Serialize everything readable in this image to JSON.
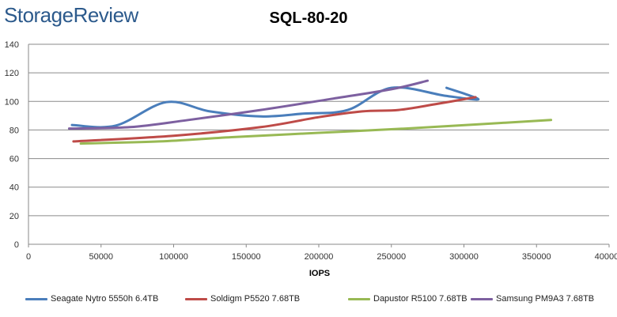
{
  "brand": {
    "logo_text": "StorageReview"
  },
  "chart_data": {
    "type": "line",
    "title": "SQL-80-20",
    "xlabel": "IOPS",
    "ylabel": "",
    "xlim": [
      0,
      400000
    ],
    "ylim": [
      0,
      140
    ],
    "x_ticks": [
      0,
      50000,
      100000,
      150000,
      200000,
      250000,
      300000,
      350000,
      400000
    ],
    "y_ticks": [
      0,
      20,
      40,
      60,
      80,
      100,
      120,
      140
    ],
    "grid": "horizontal",
    "legend_position": "bottom",
    "series": [
      {
        "name": "Seagate Nytro 5550h 6.4TB",
        "color": "#4a7ebb",
        "points": [
          [
            30000,
            83.5
          ],
          [
            60000,
            83
          ],
          [
            95000,
            99.5
          ],
          [
            125000,
            93
          ],
          [
            160000,
            89.5
          ],
          [
            190000,
            91.5
          ],
          [
            220000,
            94
          ],
          [
            250000,
            109.5
          ],
          [
            287000,
            104
          ],
          [
            310000,
            101.5
          ],
          [
            288000,
            109.5
          ]
        ]
      },
      {
        "name": "Soldigm P5520 7.68TB",
        "color": "#be4b48",
        "points": [
          [
            31000,
            72
          ],
          [
            100000,
            76
          ],
          [
            160000,
            82
          ],
          [
            200000,
            89
          ],
          [
            230000,
            93
          ],
          [
            255000,
            94
          ],
          [
            280000,
            98
          ],
          [
            308000,
            103
          ]
        ]
      },
      {
        "name": "Dapustor R5100 7.68TB",
        "color": "#98b954",
        "points": [
          [
            36000,
            70.5
          ],
          [
            90000,
            72
          ],
          [
            140000,
            75
          ],
          [
            200000,
            78
          ],
          [
            260000,
            81
          ],
          [
            310000,
            84
          ],
          [
            360000,
            87
          ]
        ]
      },
      {
        "name": "Samsung PM9A3 7.68TB",
        "color": "#7d60a0",
        "points": [
          [
            28000,
            81
          ],
          [
            70000,
            82
          ],
          [
            110000,
            87
          ],
          [
            160000,
            94
          ],
          [
            210000,
            102
          ],
          [
            250000,
            108.5
          ],
          [
            275000,
            114.5
          ]
        ]
      }
    ]
  }
}
